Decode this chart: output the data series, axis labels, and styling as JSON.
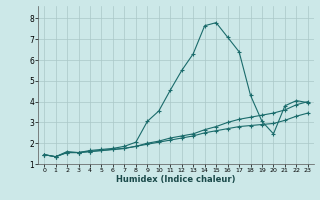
{
  "xlabel": "Humidex (Indice chaleur)",
  "bg_color": "#cce8e8",
  "line_color": "#1a6b6b",
  "grid_color": "#aac8c8",
  "xlim": [
    -0.5,
    23.5
  ],
  "ylim": [
    1.0,
    8.6
  ],
  "yticks": [
    1,
    2,
    3,
    4,
    5,
    6,
    7,
    8
  ],
  "xticks": [
    0,
    1,
    2,
    3,
    4,
    5,
    6,
    7,
    8,
    9,
    10,
    11,
    12,
    13,
    14,
    15,
    16,
    17,
    18,
    19,
    20,
    21,
    22,
    23
  ],
  "series": [
    {
      "x": [
        0,
        1,
        2,
        3,
        4,
        5,
        6,
        7,
        8,
        9,
        10,
        11,
        12,
        13,
        14,
        15,
        16,
        17,
        18,
        19,
        20,
        21,
        22,
        23
      ],
      "y": [
        1.45,
        1.35,
        1.6,
        1.55,
        1.65,
        1.7,
        1.75,
        1.85,
        2.05,
        3.05,
        3.55,
        4.55,
        5.5,
        6.3,
        7.65,
        7.8,
        7.1,
        6.4,
        4.3,
        3.05,
        2.45,
        3.8,
        4.05,
        3.95
      ]
    },
    {
      "x": [
        0,
        1,
        2,
        3,
        4,
        5,
        6,
        7,
        8,
        9,
        10,
        11,
        12,
        13,
        14,
        15,
        16,
        17,
        18,
        19,
        20,
        21,
        22,
        23
      ],
      "y": [
        1.45,
        1.35,
        1.55,
        1.55,
        1.6,
        1.65,
        1.7,
        1.75,
        1.85,
        2.0,
        2.1,
        2.25,
        2.35,
        2.45,
        2.65,
        2.8,
        3.0,
        3.15,
        3.25,
        3.35,
        3.45,
        3.6,
        3.85,
        4.0
      ]
    },
    {
      "x": [
        0,
        1,
        2,
        3,
        4,
        5,
        6,
        7,
        8,
        9,
        10,
        11,
        12,
        13,
        14,
        15,
        16,
        17,
        18,
        19,
        20,
        21,
        22,
        23
      ],
      "y": [
        1.45,
        1.35,
        1.55,
        1.55,
        1.6,
        1.65,
        1.7,
        1.75,
        1.85,
        1.95,
        2.05,
        2.15,
        2.25,
        2.35,
        2.5,
        2.6,
        2.7,
        2.8,
        2.85,
        2.9,
        2.95,
        3.1,
        3.3,
        3.45
      ]
    }
  ]
}
